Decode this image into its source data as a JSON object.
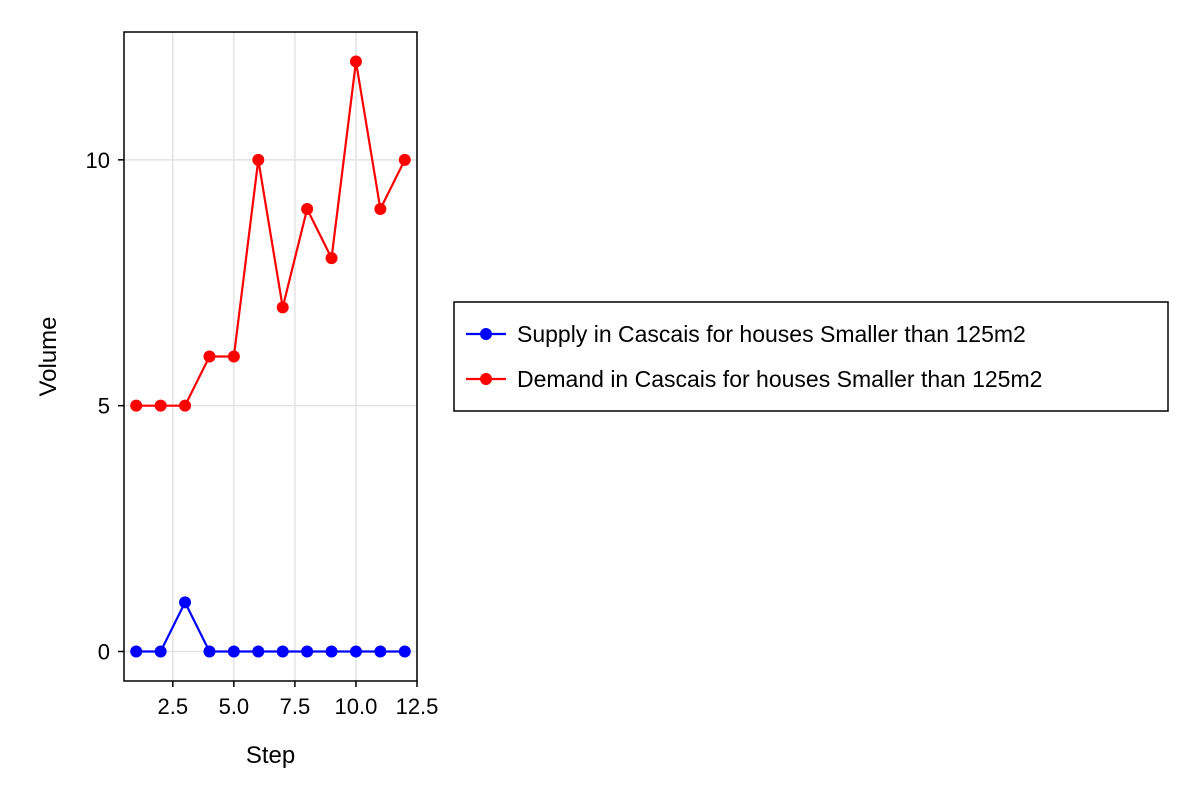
{
  "chart_data": {
    "type": "line",
    "title": "",
    "xlabel": "Step",
    "ylabel": "Volume",
    "x": [
      1,
      2,
      3,
      4,
      5,
      6,
      7,
      8,
      9,
      10,
      11,
      12
    ],
    "xlim": [
      0.5,
      12.5
    ],
    "ylim": [
      -0.6,
      12.6
    ],
    "xticks": [
      2.5,
      5.0,
      7.5,
      10.0,
      12.5
    ],
    "xtick_labels": [
      "2.5",
      "5.0",
      "7.5",
      "10.0",
      "12.5"
    ],
    "yticks": [
      0,
      5,
      10
    ],
    "ytick_labels": [
      "0",
      "5",
      "10"
    ],
    "grid": true,
    "legend_position": "right",
    "series": [
      {
        "name": "Supply in Cascais for houses Smaller than 125m2",
        "color": "#0000ff",
        "values": [
          0,
          0,
          1,
          0,
          0,
          0,
          0,
          0,
          0,
          0,
          0,
          0
        ]
      },
      {
        "name": "Demand in Cascais for houses Smaller than 125m2",
        "color": "#ff0000",
        "values": [
          5,
          5,
          5,
          6,
          6,
          10,
          7,
          9,
          8,
          12,
          9,
          10
        ]
      }
    ]
  }
}
